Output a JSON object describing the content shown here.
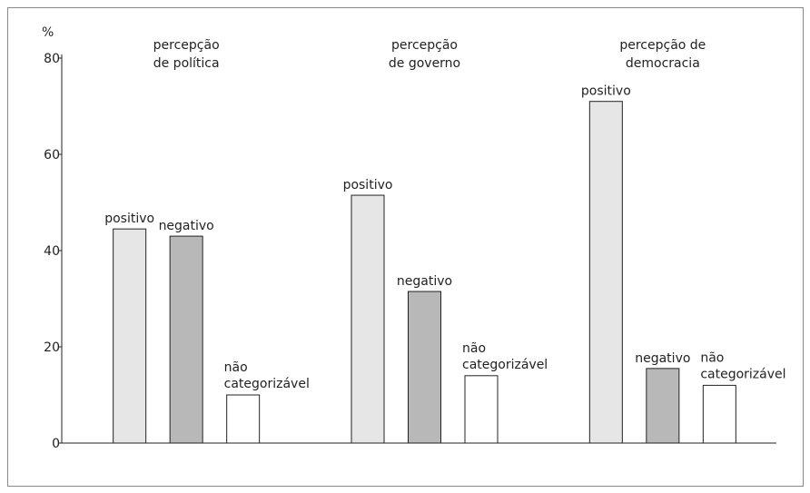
{
  "chart_data": {
    "type": "bar",
    "y_label": "%",
    "categories": [
      [
        "percepção",
        "de política"
      ],
      [
        "percepção",
        "de governo"
      ],
      [
        "percepção de",
        "democracia"
      ]
    ],
    "series": [
      {
        "name": "positivo",
        "color": "#e6e6e6",
        "values": [
          44.5,
          51.5,
          71
        ]
      },
      {
        "name": "negativo",
        "color": "#b8b8b8",
        "values": [
          43,
          31.5,
          15.5
        ]
      },
      {
        "name": "não categorizável",
        "color": "#ffffff",
        "values": [
          10,
          14,
          12
        ]
      }
    ],
    "ylim": [
      0,
      80
    ],
    "yticks": [
      0,
      20,
      40,
      60,
      80
    ],
    "grid": false
  }
}
